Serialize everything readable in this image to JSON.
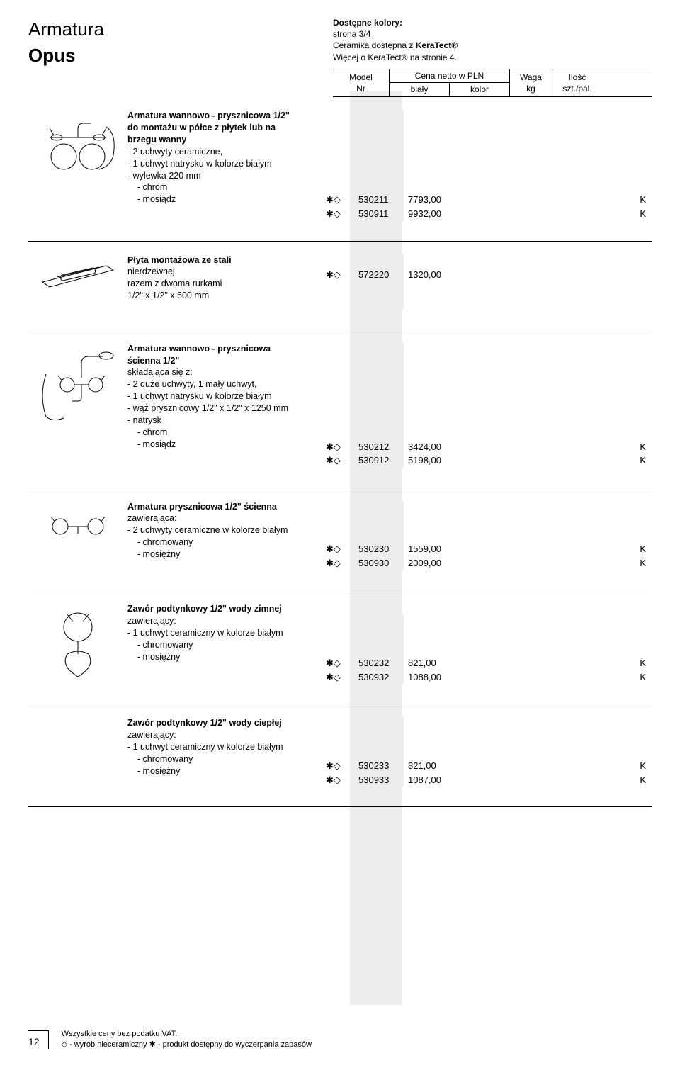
{
  "header": {
    "title": "Armatura",
    "subtitle": "Opus",
    "colors_label": "Dostępne kolory:",
    "page_info": "strona 3/4",
    "ceramika": "Ceramika dostępna z ",
    "keratect": "KeraTect®",
    "more": "Więcej o KeraTect® na stronie 4."
  },
  "thead": {
    "model": "Model",
    "nr": "Nr",
    "cena": "Cena netto w PLN",
    "bialy": "biały",
    "kolor": "kolor",
    "waga": "Waga",
    "kg": "kg",
    "ilosc": "Ilość",
    "pal": "szt./pal."
  },
  "sym_marker": "✱◇",
  "products": [
    {
      "title": "Armatura wannowo - prysznicowa 1/2\"\ndo montażu w półce z płytek lub na\nbrzegu wanny",
      "lines": [
        "- 2 uchwyty ceramiczne,",
        "- 1 uchwyt  natrysku w kolorze białym",
        "- wylewka 220 mm"
      ],
      "variants": [
        {
          "label": "    - chrom",
          "model": "530211",
          "price": "7793,00",
          "k": "K"
        },
        {
          "label": "    - mosiądz",
          "model": "530911",
          "price": "9932,00",
          "k": "K"
        }
      ]
    },
    {
      "title": "Płyta montażowa ze stali",
      "lines": [],
      "variants": [
        {
          "label": "nierdzewnej",
          "model": "572220",
          "price": "1320,00",
          "k": ""
        }
      ],
      "suffix": [
        "razem z dwoma rurkami",
        "1/2\" x 1/2\" x 600 mm"
      ]
    },
    {
      "title": "Armatura wannowo - prysznicowa\nścienna 1/2\"",
      "lines": [
        "składająca się z:",
        "- 2 duże uchwyty, 1 mały uchwyt,",
        "- 1 uchwyt  natrysku w kolorze białym",
        "- wąż prysznicowy 1/2\" x 1/2\" x 1250 mm",
        "- natrysk"
      ],
      "variants": [
        {
          "label": "    - chrom",
          "model": "530212",
          "price": "3424,00",
          "k": "K"
        },
        {
          "label": "    - mosiądz",
          "model": "530912",
          "price": "5198,00",
          "k": "K"
        }
      ]
    },
    {
      "title": "Armatura prysznicowa 1/2\" ścienna",
      "lines": [
        "zawierająca:",
        "- 2 uchwyty ceramiczne w kolorze białym"
      ],
      "variants": [
        {
          "label": "    - chromowany",
          "model": "530230",
          "price": "1559,00",
          "k": "K"
        },
        {
          "label": "    - mosiężny",
          "model": "530930",
          "price": "2009,00",
          "k": "K"
        }
      ]
    },
    {
      "title": "Zawór podtynkowy 1/2\" wody zimnej",
      "lines": [
        "zawierający:",
        "- 1 uchwyt ceramiczny w kolorze białym"
      ],
      "variants": [
        {
          "label": "    - chromowany",
          "model": "530232",
          "price": "821,00",
          "k": "K"
        },
        {
          "label": "    - mosiężny",
          "model": "530932",
          "price": "1088,00",
          "k": "K"
        }
      ]
    },
    {
      "title": "Zawór podtynkowy 1/2\" wody ciepłej",
      "lines": [
        "zawierający:",
        "- 1 uchwyt ceramiczny w kolorze białym"
      ],
      "variants": [
        {
          "label": "    - chromowany",
          "model": "530233",
          "price": "821,00",
          "k": "K"
        },
        {
          "label": "    - mosiężny",
          "model": "530933",
          "price": "1087,00",
          "k": "K"
        }
      ]
    }
  ],
  "footer": {
    "page": "12",
    "vat": "Wszystkie ceny bez podatku VAT.",
    "diamond": "◇",
    "diamond_text": " - wyrób nieceramiczny ",
    "star": "✱",
    "star_text": " - produkt dostępny do wyczerpania zapasów"
  }
}
